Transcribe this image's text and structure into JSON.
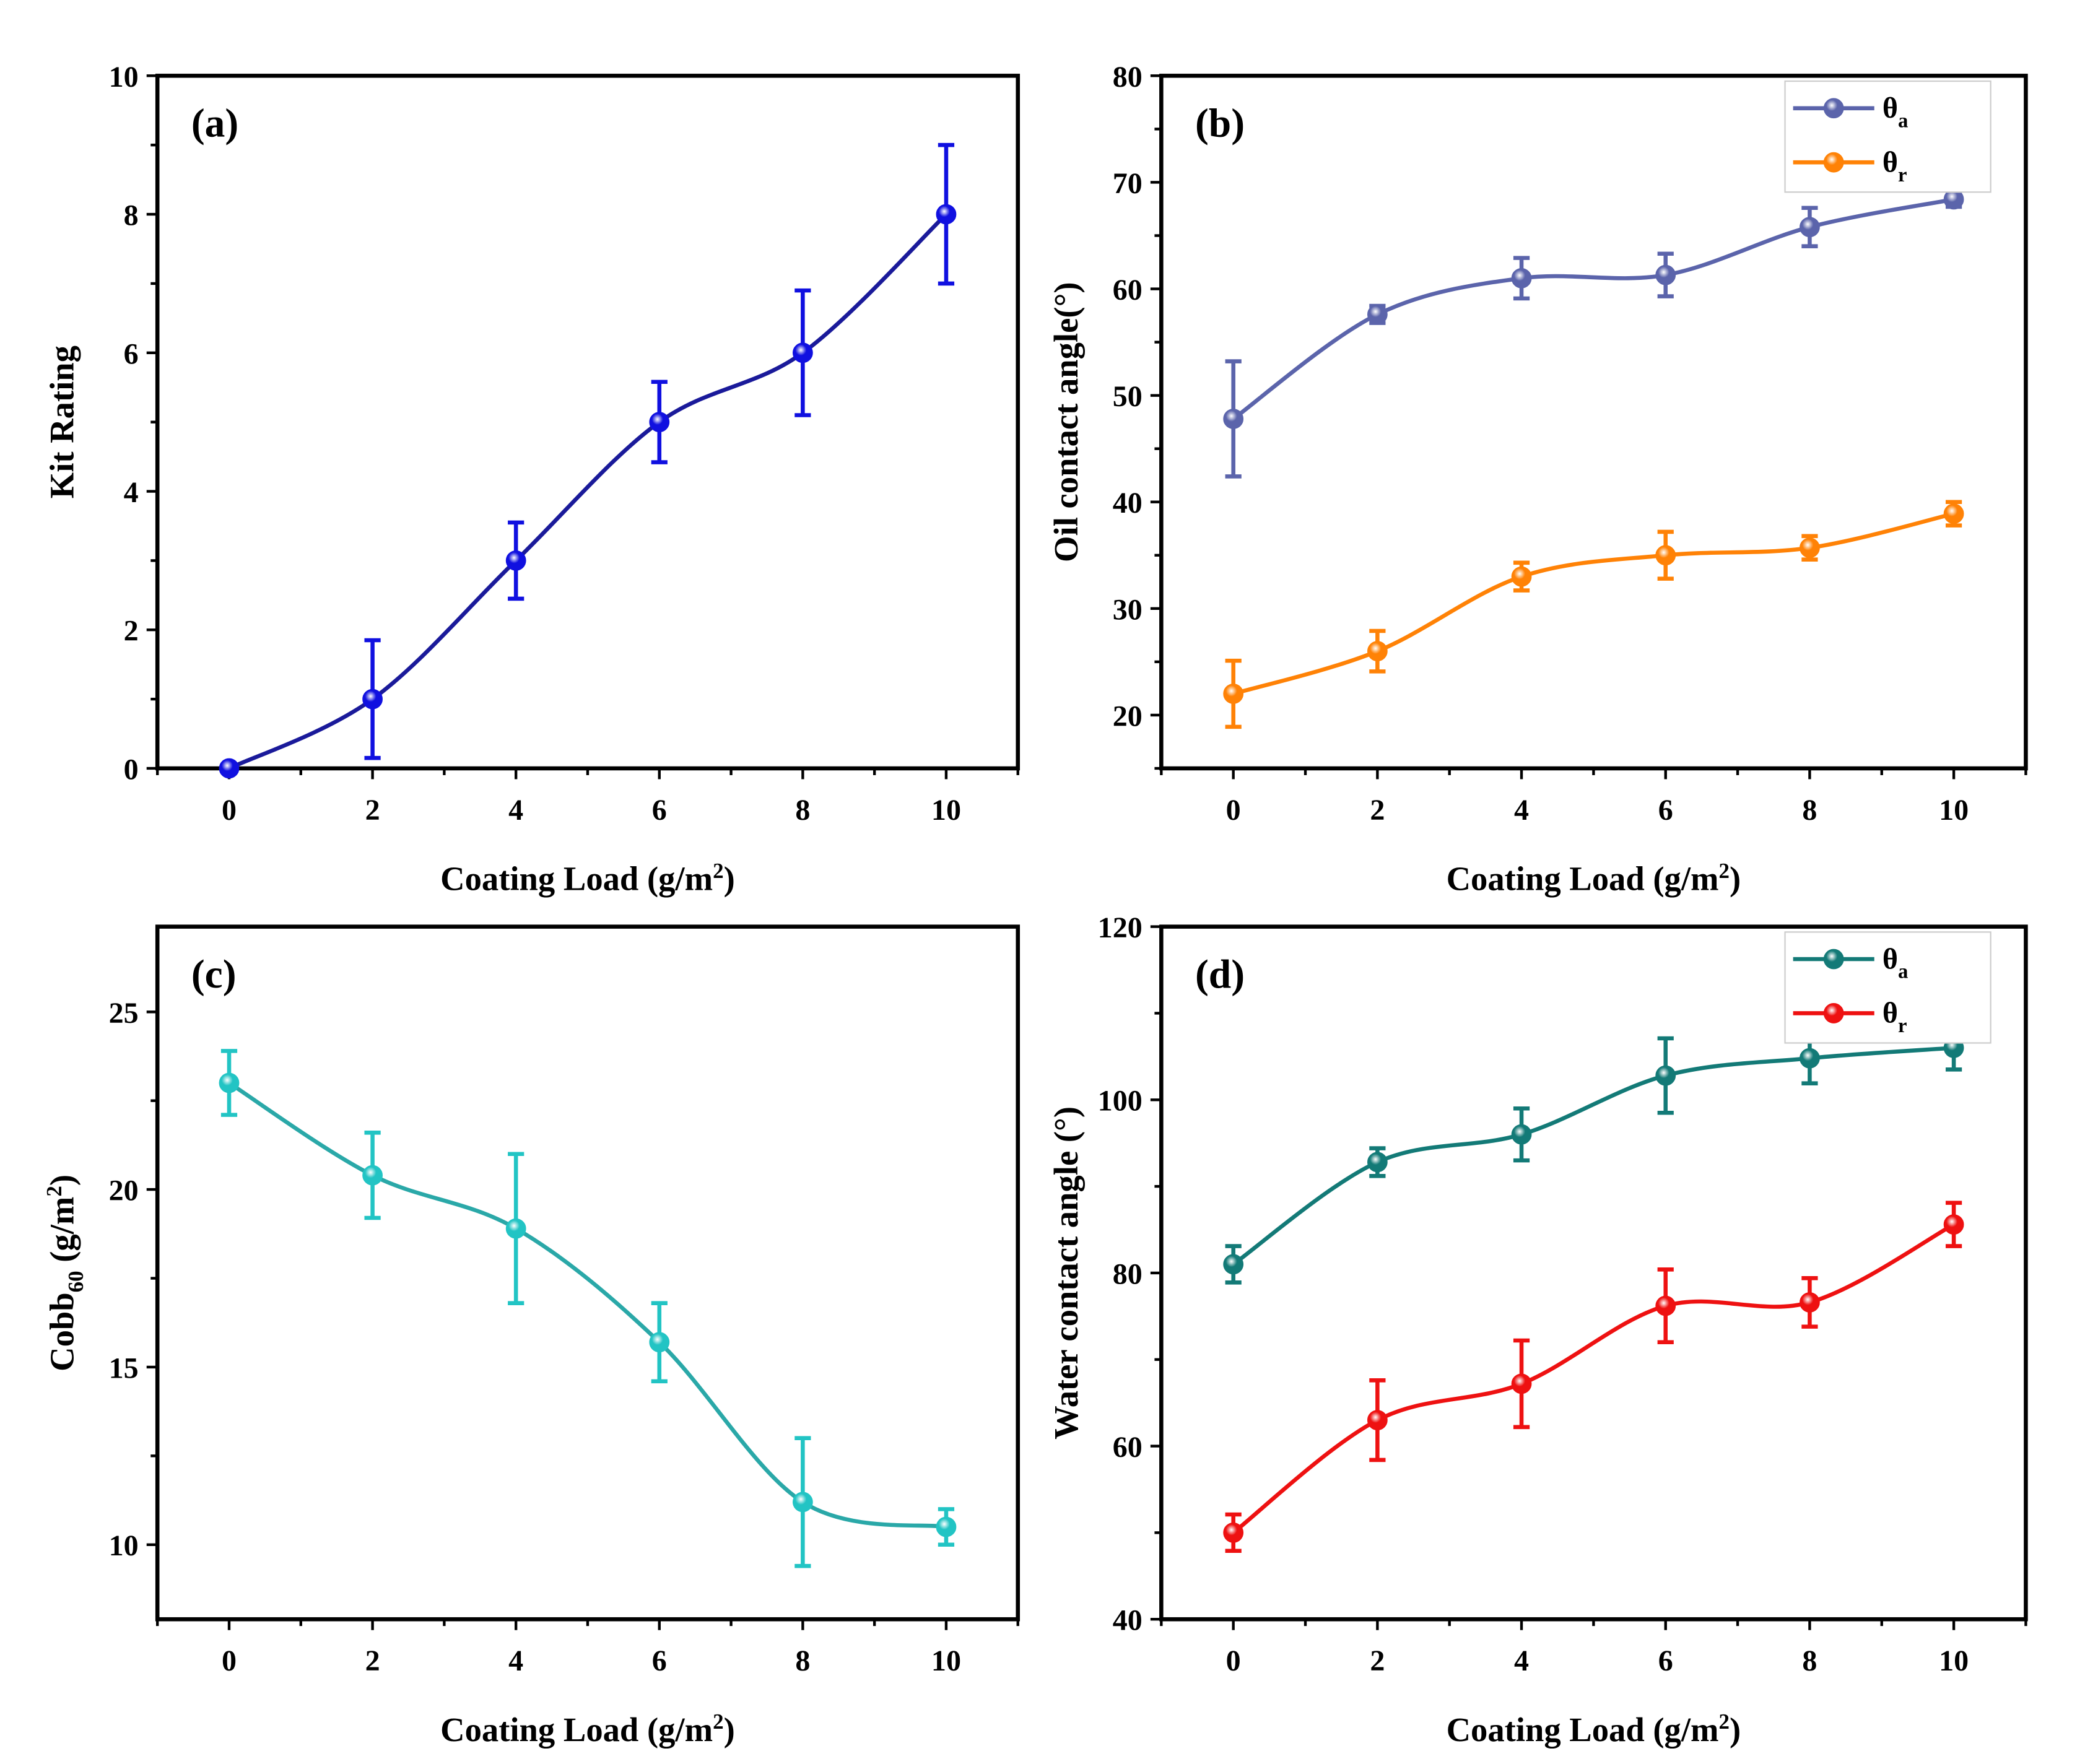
{
  "chart_data": [
    {
      "type": "line",
      "panel_label": "(a)",
      "xlabel": {
        "main": "Coating Load (g/m",
        "sup": "2",
        "end": ")"
      },
      "ylabel": {
        "main": "Kit Rating",
        "sub": "",
        "mid": "",
        "sup": "",
        "end": ""
      },
      "x": [
        0,
        2,
        4,
        6,
        8,
        10
      ],
      "xlim": [
        -1,
        11
      ],
      "ylim": [
        0,
        10
      ],
      "xticks": [
        0,
        2,
        4,
        6,
        8,
        10
      ],
      "yticks": [
        0,
        2,
        4,
        6,
        8,
        10
      ],
      "legend": null,
      "series": [
        {
          "name": "Kit Rating",
          "values": [
            0,
            1,
            3,
            5,
            6,
            8
          ],
          "errors": [
            0,
            0.85,
            0.55,
            0.58,
            0.9,
            1.0
          ],
          "line_color": "#1a1a9a",
          "marker_color": "#1010e0"
        }
      ]
    },
    {
      "type": "line",
      "panel_label": "(b)",
      "xlabel": {
        "main": "Coating Load (g/m",
        "sup": "2",
        "end": ")"
      },
      "ylabel": {
        "main": "Oil contact angle(°)",
        "sub": "",
        "mid": "",
        "sup": "",
        "end": ""
      },
      "x": [
        0,
        2,
        4,
        6,
        8,
        10
      ],
      "xlim": [
        -1,
        11
      ],
      "ylim": [
        15,
        80
      ],
      "xticks": [
        0,
        2,
        4,
        6,
        8,
        10
      ],
      "yticks": [
        20,
        30,
        40,
        50,
        60,
        70,
        80
      ],
      "legend": "top-right",
      "series": [
        {
          "name": "θ",
          "sub": "a",
          "values": [
            47.8,
            57.6,
            61.0,
            61.3,
            65.8,
            68.4
          ],
          "errors": [
            5.4,
            0.8,
            1.9,
            2.0,
            1.8,
            0.7
          ],
          "line_color": "#5b64ab",
          "marker_color": "#5b64ab"
        },
        {
          "name": "θ",
          "sub": "r",
          "values": [
            22.0,
            26.0,
            33.0,
            35.0,
            35.7,
            38.9
          ],
          "errors": [
            3.1,
            1.9,
            1.3,
            2.2,
            1.1,
            1.1
          ],
          "line_color": "#ff8206",
          "marker_color": "#ff8206"
        }
      ]
    },
    {
      "type": "line",
      "panel_label": "(c)",
      "xlabel": {
        "main": "Coating Load (g/m",
        "sup": "2",
        "end": ")"
      },
      "ylabel": {
        "main": "Cobb",
        "sub": "60",
        "mid": " (g/m",
        "sup": "2",
        "end": ")"
      },
      "x": [
        0,
        2,
        4,
        6,
        8,
        10
      ],
      "xlim": [
        -1,
        11
      ],
      "ylim": [
        7.9,
        27.4
      ],
      "xticks": [
        0,
        2,
        4,
        6,
        8,
        10
      ],
      "yticks": [
        10,
        15,
        20,
        25
      ],
      "legend": null,
      "series": [
        {
          "name": "Cobb60",
          "values": [
            23.0,
            20.4,
            18.9,
            15.7,
            11.2,
            10.5
          ],
          "errors": [
            0.9,
            1.2,
            2.1,
            1.1,
            1.8,
            0.5
          ],
          "line_color": "#2aa8a8",
          "marker_color": "#22c4c4"
        }
      ]
    },
    {
      "type": "line",
      "panel_label": "(d)",
      "xlabel": {
        "main": "Coating Load (g/m",
        "sup": "2",
        "end": ")"
      },
      "ylabel": {
        "main": "Water contact angle (°)",
        "sub": "",
        "mid": "",
        "sup": "",
        "end": ""
      },
      "x": [
        0,
        2,
        4,
        6,
        8,
        10
      ],
      "xlim": [
        -1,
        11
      ],
      "ylim": [
        40,
        120
      ],
      "xticks": [
        0,
        2,
        4,
        6,
        8,
        10
      ],
      "yticks": [
        40,
        60,
        80,
        100,
        120
      ],
      "legend": "top-right",
      "series": [
        {
          "name": "θ",
          "sub": "a",
          "values": [
            81.0,
            92.8,
            96.0,
            102.8,
            104.8,
            106.0
          ],
          "errors": [
            2.1,
            1.6,
            3.0,
            4.3,
            2.9,
            2.5
          ],
          "line_color": "#137a77",
          "marker_color": "#137a77"
        },
        {
          "name": "θ",
          "sub": "r",
          "values": [
            50.0,
            63.0,
            67.2,
            76.2,
            76.6,
            85.6
          ],
          "errors": [
            2.1,
            4.6,
            5.0,
            4.2,
            2.8,
            2.5
          ],
          "line_color": "#ee1111",
          "marker_color": "#ee1111"
        }
      ]
    }
  ]
}
